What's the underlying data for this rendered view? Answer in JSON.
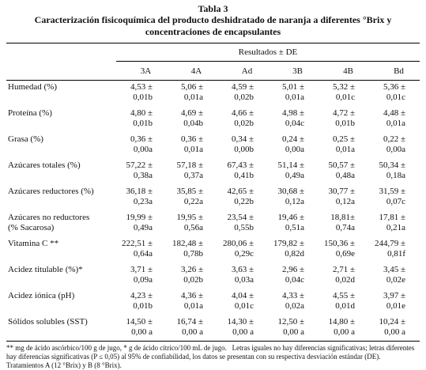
{
  "title": "Tabla 3",
  "caption": "Caracterización fisicoquímica del producto deshidratado de naranja a diferentes °Brix y concentraciones de encapsulantes",
  "table": {
    "group_header": "Resultados ± DE",
    "columns": [
      "3A",
      "4A",
      "Ad",
      "3B",
      "4B",
      "Bd"
    ],
    "rows": [
      {
        "label": "Humedad (%)",
        "values": [
          [
            "4,53 ±",
            "0,01b"
          ],
          [
            "5,06 ±",
            "0,01a"
          ],
          [
            "4,59 ±",
            "0,02b"
          ],
          [
            "5,01 ±",
            "0,01a"
          ],
          [
            "5,32 ±",
            "0,01c"
          ],
          [
            "5,36 ±",
            "0,01c"
          ]
        ]
      },
      {
        "label": "Proteína (%)",
        "values": [
          [
            "4,80 ±",
            "0,01b"
          ],
          [
            "4,69 ±",
            "0,04b"
          ],
          [
            "4,66 ±",
            "0,02b"
          ],
          [
            "4,98 ±",
            "0,04c"
          ],
          [
            "4,72 ±",
            "0,01b"
          ],
          [
            "4,48 ±",
            "0,01a"
          ]
        ]
      },
      {
        "label": "Grasa (%)",
        "values": [
          [
            "0,36 ±",
            "0,00a"
          ],
          [
            "0,36 ±",
            "0,01a"
          ],
          [
            "0,34 ±",
            "0,00b"
          ],
          [
            "0,24 ±",
            "0,00a"
          ],
          [
            "0,25 ±",
            "0,01a"
          ],
          [
            "0,22 ±",
            "0,00a"
          ]
        ]
      },
      {
        "label": "Azúcares totales (%)",
        "values": [
          [
            "57,22 ±",
            "0,38a"
          ],
          [
            "57,18 ±",
            "0,37a"
          ],
          [
            "67,43 ±",
            "0,41b"
          ],
          [
            "51,14 ±",
            "0,49a"
          ],
          [
            "50,57 ±",
            "0,48a"
          ],
          [
            "50,34 ±",
            "0,18a"
          ]
        ]
      },
      {
        "label": "Azúcares reductores (%)",
        "values": [
          [
            "36,18 ±",
            "0,23a"
          ],
          [
            "35,85 ±",
            "0,22a"
          ],
          [
            "42,65 ±",
            "0,22b"
          ],
          [
            "30,68 ±",
            "0,12a"
          ],
          [
            "30,77 ±",
            "0,12a"
          ],
          [
            "31,59 ±",
            "0,07c"
          ]
        ]
      },
      {
        "label": [
          "Azúcares no reductores",
          "(% Sacarosa)"
        ],
        "values": [
          [
            "19,99 ±",
            "0,49a"
          ],
          [
            "19,95 ±",
            "0,56a"
          ],
          [
            "23,54 ±",
            "0,55b"
          ],
          [
            "19,46 ±",
            "0,51a"
          ],
          [
            "18,81±",
            "0,74a"
          ],
          [
            "17,81 ±",
            "0,21a"
          ]
        ]
      },
      {
        "label": "Vitamina C **",
        "values": [
          [
            "222,51 ±",
            "0,64a"
          ],
          [
            "182,48 ±",
            "0,78b"
          ],
          [
            "280,06 ±",
            "0,29c"
          ],
          [
            "179,82 ±",
            "0,82d"
          ],
          [
            "150,36 ±",
            "0,69e"
          ],
          [
            "244,79 ±",
            "0,81f"
          ]
        ]
      },
      {
        "label": "Acidez titulable (%)*",
        "values": [
          [
            "3,71 ±",
            "0,09a"
          ],
          [
            "3,26 ±",
            "0,02b"
          ],
          [
            "3,63 ±",
            "0,03a"
          ],
          [
            "2,96 ±",
            "0,04c"
          ],
          [
            "2,71 ±",
            "0,02d"
          ],
          [
            "3,45 ±",
            "0,02e"
          ]
        ]
      },
      {
        "label": "Acidez iónica (pH)",
        "values": [
          [
            "4,23 ±",
            "0,01b"
          ],
          [
            "4,36 ±",
            "0,01a"
          ],
          [
            "4,04 ±",
            "0,01c"
          ],
          [
            "4,33 ±",
            "0,02a"
          ],
          [
            "4,55 ±",
            "0,01d"
          ],
          [
            "3,97 ±",
            "0,01e"
          ]
        ]
      },
      {
        "label": "Sólidos solubles (SST)",
        "values": [
          [
            "14,50 ±",
            "0,00 a"
          ],
          [
            "16,74 ±",
            "0,00 a"
          ],
          [
            "14,30 ±",
            "0,00 a"
          ],
          [
            "12,50 ±",
            "0,00 a"
          ],
          [
            "14,80 ±",
            "0,00 a"
          ],
          [
            "10,24 ±",
            "0,00 a"
          ]
        ]
      }
    ]
  },
  "footnote": "** mg de ácido ascórbico/100 g de jugo, * g de ácido cítrico/100 mL de jugo.   Letras iguales no hay diferencias significativas; letras diferentes hay diferencias significativas (P ≤ 0,05) al 95% de confiabilidad, los datos se presentan con su respectiva desviación estándar (DE).   Tratamientos A (12 °Brix) y B (8 °Brix)."
}
